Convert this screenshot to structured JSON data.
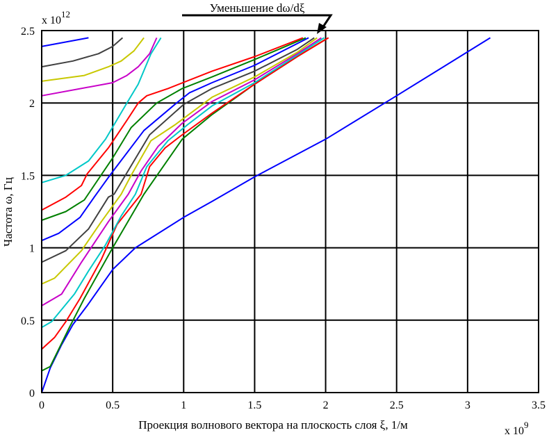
{
  "chart_data": {
    "type": "line",
    "title": "",
    "annotation": "Уменьшение dω/dξ",
    "xlabel": "Проекция волнового вектора на плоскость слоя ξ, 1/м",
    "ylabel": "Частота ω, Гц",
    "x_multiplier": "x 10",
    "x_exponent": "9",
    "y_multiplier": "x 10",
    "y_exponent": "12",
    "xlim": [
      0,
      3.5
    ],
    "ylim": [
      0,
      2.5
    ],
    "xticks": [
      "0",
      "0.5",
      "1",
      "1.5",
      "2",
      "2.5",
      "3",
      "3.5"
    ],
    "yticks": [
      "0",
      "0.5",
      "1",
      "1.5",
      "2",
      "2.5"
    ],
    "grid": true,
    "series": [
      {
        "name": "axis-blue",
        "color": "#0000ff",
        "points": [
          [
            0,
            0
          ],
          [
            0,
            2.39
          ]
        ]
      },
      {
        "name": "blue-0",
        "color": "#0000ff",
        "points": [
          [
            0,
            0
          ],
          [
            0.06,
            0.17
          ],
          [
            0.14,
            0.33
          ],
          [
            0.22,
            0.47
          ],
          [
            0.32,
            0.6
          ],
          [
            0.5,
            0.85
          ],
          [
            0.66,
            1.0
          ],
          [
            1.0,
            1.21
          ],
          [
            1.2,
            1.32
          ],
          [
            1.5,
            1.49
          ],
          [
            2.0,
            1.75
          ],
          [
            2.5,
            2.05
          ],
          [
            3.16,
            2.45
          ]
        ]
      },
      {
        "name": "green-0.15",
        "color": "#008000",
        "points": [
          [
            0,
            0.15
          ],
          [
            0.06,
            0.18
          ],
          [
            0.19,
            0.44
          ],
          [
            0.3,
            0.65
          ],
          [
            0.5,
            1.0
          ],
          [
            0.72,
            1.37
          ],
          [
            0.99,
            1.75
          ],
          [
            1.2,
            1.92
          ],
          [
            1.5,
            2.13
          ],
          [
            1.8,
            2.32
          ],
          [
            2.0,
            2.44
          ]
        ]
      },
      {
        "name": "red-0.3",
        "color": "#ff0000",
        "points": [
          [
            0,
            0.3
          ],
          [
            0.09,
            0.38
          ],
          [
            0.17,
            0.49
          ],
          [
            0.27,
            0.65
          ],
          [
            0.42,
            0.92
          ],
          [
            0.53,
            1.16
          ],
          [
            0.7,
            1.37
          ],
          [
            0.76,
            1.56
          ],
          [
            0.87,
            1.69
          ],
          [
            0.99,
            1.78
          ],
          [
            1.2,
            1.93
          ],
          [
            1.5,
            2.13
          ],
          [
            1.8,
            2.32
          ],
          [
            2.02,
            2.45
          ]
        ]
      },
      {
        "name": "cyan-0.45",
        "color": "#00c8c8",
        "points": [
          [
            0,
            0.45
          ],
          [
            0.07,
            0.49
          ],
          [
            0.23,
            0.68
          ],
          [
            0.33,
            0.84
          ],
          [
            0.45,
            1.02
          ],
          [
            0.56,
            1.22
          ],
          [
            0.66,
            1.37
          ],
          [
            0.74,
            1.56
          ],
          [
            0.89,
            1.74
          ],
          [
            1.04,
            1.86
          ],
          [
            1.2,
            1.98
          ],
          [
            1.5,
            2.14
          ],
          [
            1.8,
            2.33
          ],
          [
            1.99,
            2.45
          ]
        ]
      },
      {
        "name": "magenta-0.6",
        "color": "#c800c8",
        "points": [
          [
            0,
            0.6
          ],
          [
            0.14,
            0.68
          ],
          [
            0.28,
            0.9
          ],
          [
            0.47,
            1.18
          ],
          [
            0.61,
            1.37
          ],
          [
            0.7,
            1.53
          ],
          [
            0.82,
            1.7
          ],
          [
            0.99,
            1.86
          ],
          [
            1.2,
            2.01
          ],
          [
            1.5,
            2.16
          ],
          [
            1.8,
            2.34
          ],
          [
            1.97,
            2.45
          ]
        ]
      },
      {
        "name": "yellow-0.75",
        "color": "#c8c800",
        "points": [
          [
            0,
            0.75
          ],
          [
            0.09,
            0.79
          ],
          [
            0.28,
            0.98
          ],
          [
            0.42,
            1.18
          ],
          [
            0.56,
            1.37
          ],
          [
            0.63,
            1.5
          ],
          [
            0.77,
            1.74
          ],
          [
            0.94,
            1.85
          ],
          [
            1.2,
            2.04
          ],
          [
            1.5,
            2.18
          ],
          [
            1.8,
            2.35
          ],
          [
            1.94,
            2.45
          ]
        ]
      },
      {
        "name": "gray-0.9",
        "color": "#404040",
        "points": [
          [
            0,
            0.9
          ],
          [
            0.17,
            0.98
          ],
          [
            0.33,
            1.13
          ],
          [
            0.47,
            1.35
          ],
          [
            0.51,
            1.37
          ],
          [
            0.76,
            1.78
          ],
          [
            1.0,
            1.99
          ],
          [
            1.2,
            2.1
          ],
          [
            1.5,
            2.22
          ],
          [
            1.8,
            2.37
          ],
          [
            1.92,
            2.45
          ]
        ]
      },
      {
        "name": "blue-1.05",
        "color": "#0000ff",
        "points": [
          [
            0,
            1.05
          ],
          [
            0.12,
            1.1
          ],
          [
            0.27,
            1.21
          ],
          [
            0.37,
            1.35
          ],
          [
            0.48,
            1.5
          ],
          [
            0.72,
            1.81
          ],
          [
            0.95,
            2.0
          ],
          [
            1.04,
            2.07
          ],
          [
            1.2,
            2.14
          ],
          [
            1.5,
            2.26
          ],
          [
            1.88,
            2.45
          ]
        ]
      },
      {
        "name": "green-1.2",
        "color": "#008000",
        "points": [
          [
            0,
            1.19
          ],
          [
            0.17,
            1.25
          ],
          [
            0.25,
            1.3
          ],
          [
            0.3,
            1.33
          ],
          [
            0.5,
            1.62
          ],
          [
            0.63,
            1.83
          ],
          [
            0.81,
            2.0
          ],
          [
            0.99,
            2.1
          ],
          [
            1.2,
            2.18
          ],
          [
            1.5,
            2.3
          ],
          [
            1.86,
            2.45
          ]
        ]
      },
      {
        "name": "red-1.25",
        "color": "#ff0000",
        "points": [
          [
            0,
            1.26
          ],
          [
            0.17,
            1.35
          ],
          [
            0.28,
            1.43
          ],
          [
            0.32,
            1.51
          ],
          [
            0.47,
            1.69
          ],
          [
            0.6,
            1.88
          ],
          [
            0.68,
            2.0
          ],
          [
            0.74,
            2.05
          ],
          [
            0.89,
            2.1
          ],
          [
            1.2,
            2.22
          ],
          [
            1.5,
            2.32
          ],
          [
            1.84,
            2.45
          ]
        ]
      },
      {
        "name": "cyan-1.45",
        "color": "#00c8c8",
        "points": [
          [
            0,
            1.45
          ],
          [
            0.17,
            1.5
          ],
          [
            0.33,
            1.6
          ],
          [
            0.45,
            1.75
          ],
          [
            0.6,
            2.0
          ],
          [
            0.68,
            2.13
          ],
          [
            0.77,
            2.34
          ],
          [
            0.84,
            2.45
          ]
        ]
      },
      {
        "name": "magenta-2.05",
        "color": "#c800c8",
        "points": [
          [
            0,
            2.05
          ],
          [
            0.5,
            2.14
          ],
          [
            0.6,
            2.19
          ],
          [
            0.68,
            2.25
          ],
          [
            0.76,
            2.34
          ],
          [
            0.81,
            2.45
          ]
        ]
      },
      {
        "name": "yellow-2.15",
        "color": "#c8c800",
        "points": [
          [
            0,
            2.15
          ],
          [
            0.3,
            2.19
          ],
          [
            0.47,
            2.25
          ],
          [
            0.56,
            2.29
          ],
          [
            0.65,
            2.36
          ],
          [
            0.72,
            2.45
          ]
        ]
      },
      {
        "name": "gray-2.25",
        "color": "#404040",
        "points": [
          [
            0,
            2.25
          ],
          [
            0.22,
            2.29
          ],
          [
            0.4,
            2.34
          ],
          [
            0.5,
            2.39
          ],
          [
            0.57,
            2.45
          ]
        ]
      },
      {
        "name": "blue-2.4",
        "color": "#0000ff",
        "points": [
          [
            0,
            2.39
          ],
          [
            0.33,
            2.45
          ]
        ]
      }
    ]
  }
}
